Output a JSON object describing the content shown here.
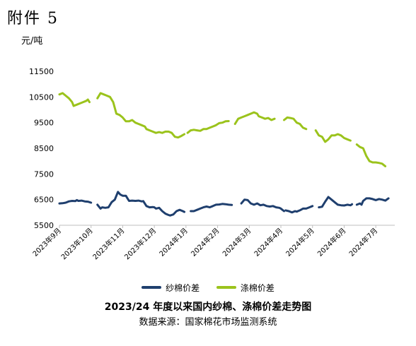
{
  "header": {
    "appendix": "附件 5",
    "unit": "元/吨"
  },
  "chart_data": {
    "type": "line",
    "title": "2023/24 年度以来国内纱棉、涤棉价差走势图",
    "source": "数据来源：国家棉花市场监测系统",
    "ylim": [
      5500,
      11500
    ],
    "y_ticks": [
      5500,
      6500,
      7500,
      8500,
      9500,
      10500,
      11500
    ],
    "grid": false,
    "legend_position": "bottom",
    "categories": [
      "2023年9月",
      "2023年10月",
      "2023年11月",
      "2023年12月",
      "2024年1月",
      "2024年2月",
      "2024年3月",
      "2024年4月",
      "2024年5月",
      "2024年6月",
      "2024年7月"
    ],
    "x_range": [
      0,
      10.6
    ],
    "series": [
      {
        "name": "纱棉价差",
        "color": "#1f3f6e",
        "segments": [
          [
            [
              0.0,
              6350
            ],
            [
              0.1,
              6360
            ],
            [
              0.2,
              6380
            ],
            [
              0.3,
              6430
            ],
            [
              0.4,
              6450
            ],
            [
              0.5,
              6440
            ],
            [
              0.55,
              6480
            ],
            [
              0.6,
              6450
            ],
            [
              0.7,
              6460
            ],
            [
              0.8,
              6430
            ],
            [
              0.9,
              6420
            ],
            [
              1.0,
              6380
            ]
          ],
          [
            [
              1.2,
              6300
            ],
            [
              1.3,
              6150
            ],
            [
              1.35,
              6200
            ],
            [
              1.45,
              6180
            ],
            [
              1.55,
              6200
            ],
            [
              1.65,
              6400
            ],
            [
              1.75,
              6500
            ],
            [
              1.85,
              6800
            ],
            [
              1.92,
              6700
            ],
            [
              2.0,
              6650
            ],
            [
              2.1,
              6650
            ],
            [
              2.2,
              6450
            ],
            [
              2.3,
              6460
            ],
            [
              2.4,
              6450
            ],
            [
              2.5,
              6460
            ],
            [
              2.6,
              6430
            ],
            [
              2.65,
              6440
            ],
            [
              2.75,
              6250
            ],
            [
              2.85,
              6200
            ],
            [
              2.95,
              6210
            ],
            [
              3.0,
              6200
            ],
            [
              3.05,
              6150
            ],
            [
              3.15,
              6180
            ],
            [
              3.25,
              6050
            ],
            [
              3.35,
              5950
            ],
            [
              3.45,
              5900
            ],
            [
              3.5,
              5880
            ],
            [
              3.6,
              5920
            ],
            [
              3.7,
              6050
            ],
            [
              3.8,
              6100
            ],
            [
              3.9,
              6050
            ],
            [
              3.95,
              6020
            ]
          ],
          [
            [
              4.15,
              6050
            ],
            [
              4.25,
              6050
            ],
            [
              4.35,
              6100
            ],
            [
              4.45,
              6150
            ],
            [
              4.55,
              6200
            ],
            [
              4.65,
              6230
            ],
            [
              4.75,
              6200
            ],
            [
              4.85,
              6250
            ],
            [
              4.95,
              6300
            ],
            [
              5.05,
              6310
            ],
            [
              5.15,
              6330
            ],
            [
              5.25,
              6320
            ],
            [
              5.35,
              6300
            ],
            [
              5.45,
              6290
            ]
          ],
          [
            [
              5.75,
              6350
            ],
            [
              5.85,
              6500
            ],
            [
              5.95,
              6480
            ],
            [
              6.05,
              6350
            ],
            [
              6.15,
              6300
            ],
            [
              6.25,
              6350
            ],
            [
              6.35,
              6280
            ],
            [
              6.45,
              6300
            ],
            [
              6.55,
              6250
            ],
            [
              6.65,
              6230
            ],
            [
              6.75,
              6250
            ],
            [
              6.85,
              6200
            ],
            [
              6.95,
              6180
            ],
            [
              7.0,
              6150
            ],
            [
              7.1,
              6050
            ]
          ],
          [
            [
              7.15,
              6080
            ],
            [
              7.25,
              6050
            ],
            [
              7.35,
              6000
            ],
            [
              7.45,
              6050
            ],
            [
              7.5,
              6030
            ],
            [
              7.6,
              6080
            ],
            [
              7.7,
              6150
            ],
            [
              7.8,
              6150
            ],
            [
              7.9,
              6200
            ],
            [
              8.0,
              6250
            ]
          ],
          [
            [
              8.2,
              6200
            ],
            [
              8.3,
              6220
            ],
            [
              8.4,
              6420
            ],
            [
              8.5,
              6600
            ],
            [
              8.6,
              6500
            ],
            [
              8.7,
              6400
            ],
            [
              8.8,
              6300
            ],
            [
              8.9,
              6280
            ],
            [
              9.0,
              6270
            ],
            [
              9.1,
              6300
            ],
            [
              9.2,
              6280
            ],
            [
              9.25,
              6320
            ]
          ],
          [
            [
              9.4,
              6300
            ],
            [
              9.5,
              6350
            ],
            [
              9.55,
              6300
            ],
            [
              9.6,
              6450
            ],
            [
              9.7,
              6550
            ],
            [
              9.8,
              6550
            ],
            [
              9.9,
              6520
            ],
            [
              10.0,
              6480
            ],
            [
              10.1,
              6520
            ],
            [
              10.2,
              6500
            ],
            [
              10.3,
              6460
            ],
            [
              10.4,
              6550
            ]
          ]
        ]
      },
      {
        "name": "涤棉价差",
        "color": "#9bc31c",
        "segments": [
          [
            [
              0.0,
              10600
            ],
            [
              0.1,
              10650
            ],
            [
              0.2,
              10550
            ],
            [
              0.3,
              10450
            ],
            [
              0.4,
              10300
            ],
            [
              0.45,
              10150
            ],
            [
              0.55,
              10200
            ],
            [
              0.65,
              10250
            ],
            [
              0.75,
              10300
            ],
            [
              0.85,
              10350
            ],
            [
              0.9,
              10400
            ],
            [
              0.95,
              10300
            ]
          ],
          [
            [
              1.2,
              10450
            ],
            [
              1.3,
              10650
            ],
            [
              1.4,
              10600
            ],
            [
              1.5,
              10550
            ],
            [
              1.6,
              10500
            ],
            [
              1.7,
              10300
            ],
            [
              1.8,
              9850
            ],
            [
              1.9,
              9800
            ],
            [
              2.0,
              9700
            ],
            [
              2.1,
              9550
            ],
            [
              2.2,
              9550
            ],
            [
              2.3,
              9600
            ],
            [
              2.4,
              9500
            ],
            [
              2.5,
              9450
            ],
            [
              2.6,
              9400
            ],
            [
              2.7,
              9350
            ],
            [
              2.75,
              9250
            ],
            [
              2.85,
              9200
            ],
            [
              2.95,
              9150
            ],
            [
              3.05,
              9100
            ],
            [
              3.15,
              9130
            ],
            [
              3.25,
              9100
            ],
            [
              3.35,
              9150
            ],
            [
              3.45,
              9150
            ],
            [
              3.55,
              9100
            ],
            [
              3.65,
              8950
            ],
            [
              3.75,
              8920
            ],
            [
              3.85,
              8980
            ],
            [
              3.95,
              9050
            ]
          ],
          [
            [
              4.05,
              9100
            ],
            [
              4.15,
              9200
            ],
            [
              4.25,
              9220
            ],
            [
              4.35,
              9200
            ],
            [
              4.45,
              9180
            ],
            [
              4.55,
              9250
            ],
            [
              4.65,
              9250
            ],
            [
              4.75,
              9300
            ],
            [
              4.85,
              9350
            ],
            [
              4.95,
              9400
            ],
            [
              5.05,
              9480
            ],
            [
              5.15,
              9500
            ],
            [
              5.25,
              9550
            ],
            [
              5.35,
              9560
            ]
          ],
          [
            [
              5.55,
              9450
            ],
            [
              5.65,
              9650
            ],
            [
              5.75,
              9700
            ],
            [
              5.85,
              9750
            ],
            [
              5.95,
              9800
            ],
            [
              6.05,
              9850
            ],
            [
              6.15,
              9900
            ],
            [
              6.25,
              9850
            ],
            [
              6.3,
              9750
            ],
            [
              6.4,
              9700
            ],
            [
              6.5,
              9650
            ],
            [
              6.6,
              9680
            ],
            [
              6.7,
              9600
            ],
            [
              6.8,
              9650
            ]
          ],
          [
            [
              7.1,
              9600
            ],
            [
              7.2,
              9700
            ],
            [
              7.3,
              9680
            ],
            [
              7.4,
              9650
            ],
            [
              7.5,
              9500
            ],
            [
              7.6,
              9450
            ],
            [
              7.7,
              9300
            ],
            [
              7.8,
              9250
            ]
          ],
          [
            [
              8.1,
              9200
            ],
            [
              8.2,
              9000
            ],
            [
              8.3,
              8950
            ],
            [
              8.4,
              8750
            ],
            [
              8.5,
              8850
            ],
            [
              8.6,
              9000
            ],
            [
              8.7,
              9000
            ],
            [
              8.8,
              9050
            ],
            [
              8.9,
              9000
            ],
            [
              9.0,
              8900
            ],
            [
              9.1,
              8850
            ],
            [
              9.2,
              8800
            ]
          ],
          [
            [
              9.4,
              8650
            ],
            [
              9.5,
              8550
            ],
            [
              9.6,
              8500
            ],
            [
              9.7,
              8200
            ],
            [
              9.8,
              8000
            ],
            [
              9.9,
              7950
            ],
            [
              10.0,
              7950
            ],
            [
              10.1,
              7930
            ],
            [
              10.2,
              7900
            ],
            [
              10.3,
              7800
            ]
          ]
        ]
      }
    ]
  }
}
